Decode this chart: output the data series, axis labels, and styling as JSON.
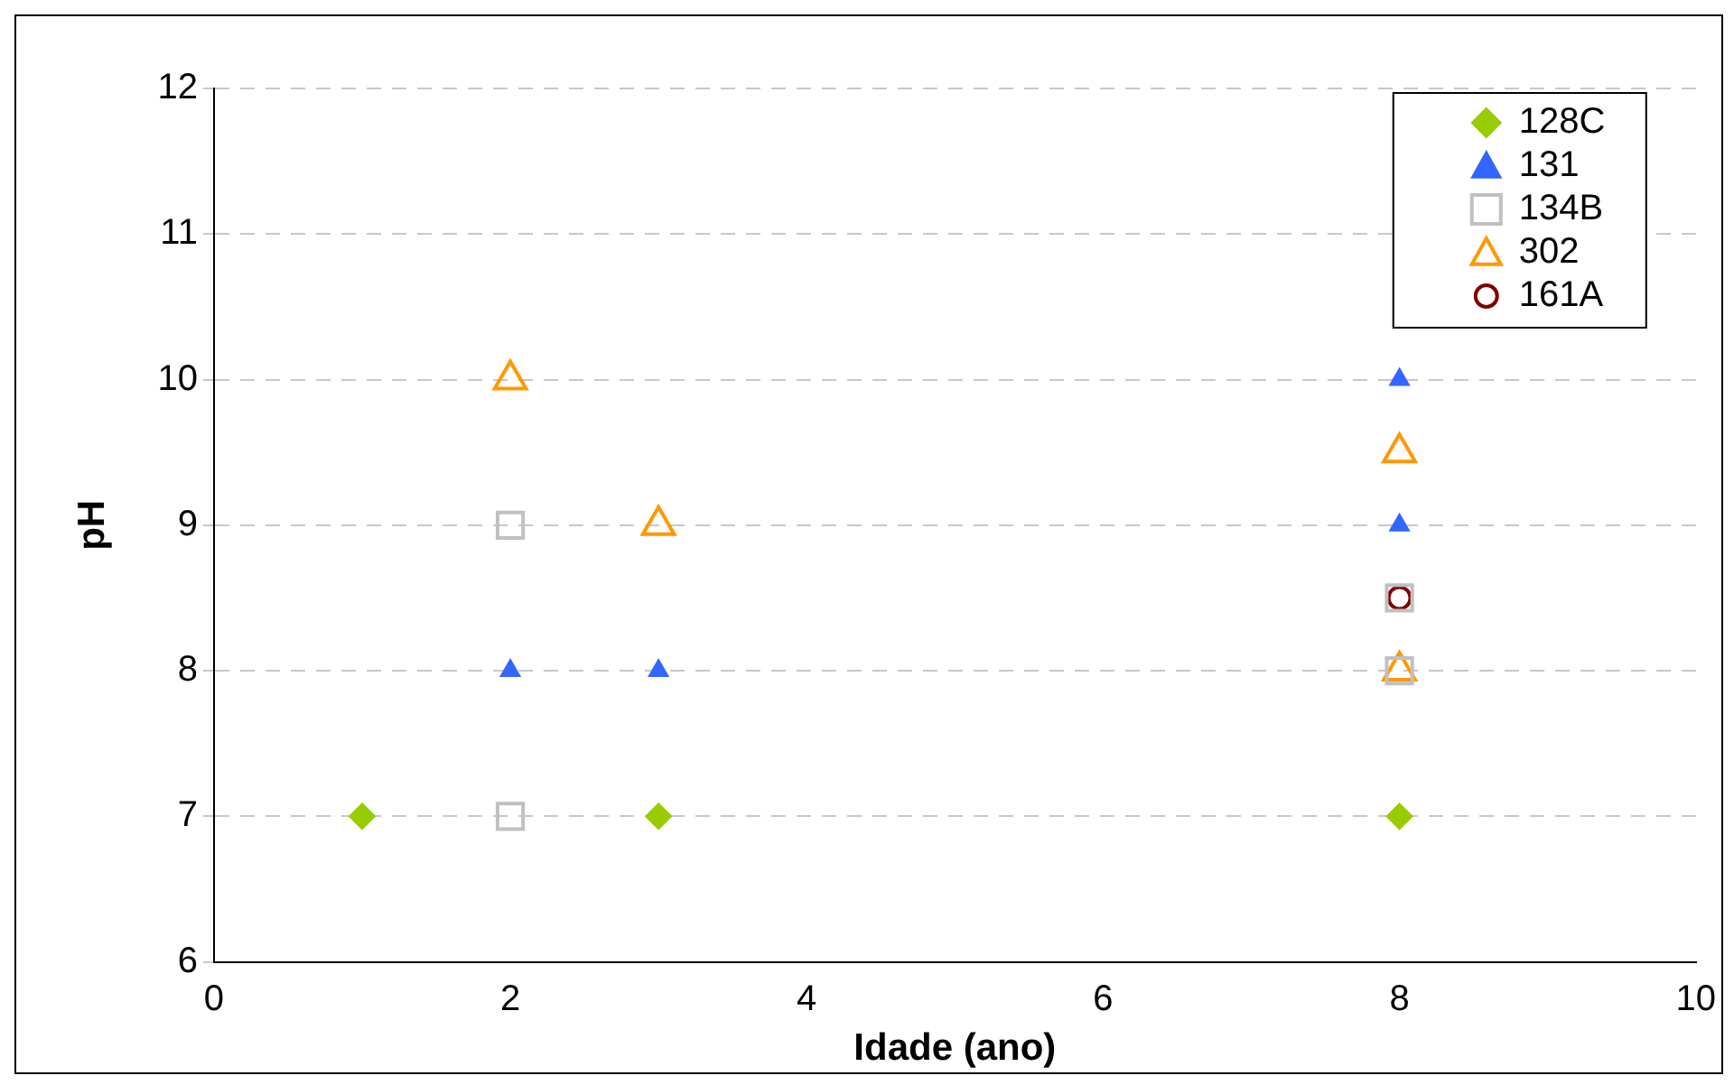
{
  "chart_data": {
    "type": "scatter",
    "xlabel": "Idade (ano)",
    "ylabel": "pH",
    "xlim": [
      0,
      10
    ],
    "xticks": [
      0,
      2,
      4,
      6,
      8,
      10
    ],
    "ylim": [
      6,
      12
    ],
    "yticks": [
      6,
      7,
      8,
      9,
      10,
      11,
      12
    ],
    "grid": "y",
    "legend": "top right",
    "series": [
      {
        "name": "128C",
        "color": "#99cc00",
        "marker": "diamond",
        "x": [
          1,
          3,
          8
        ],
        "values": [
          7,
          7,
          7
        ]
      },
      {
        "name": "131",
        "color": "#3366ff",
        "marker": "triangle",
        "x": [
          2,
          3,
          8,
          8
        ],
        "values": [
          8,
          8,
          10,
          9
        ]
      },
      {
        "name": "134B",
        "color": "#c0c0c0",
        "marker": "square",
        "x": [
          2,
          2,
          8,
          8
        ],
        "values": [
          9,
          7,
          8.5,
          8
        ]
      },
      {
        "name": "302",
        "color": "#ff9900",
        "marker": "triangle",
        "x": [
          2,
          3,
          8,
          8
        ],
        "values": [
          10,
          9,
          9.5,
          8
        ]
      },
      {
        "name": "161A",
        "color": "#800000",
        "marker": "circle",
        "x": [
          8
        ],
        "values": [
          8.5
        ]
      }
    ]
  }
}
